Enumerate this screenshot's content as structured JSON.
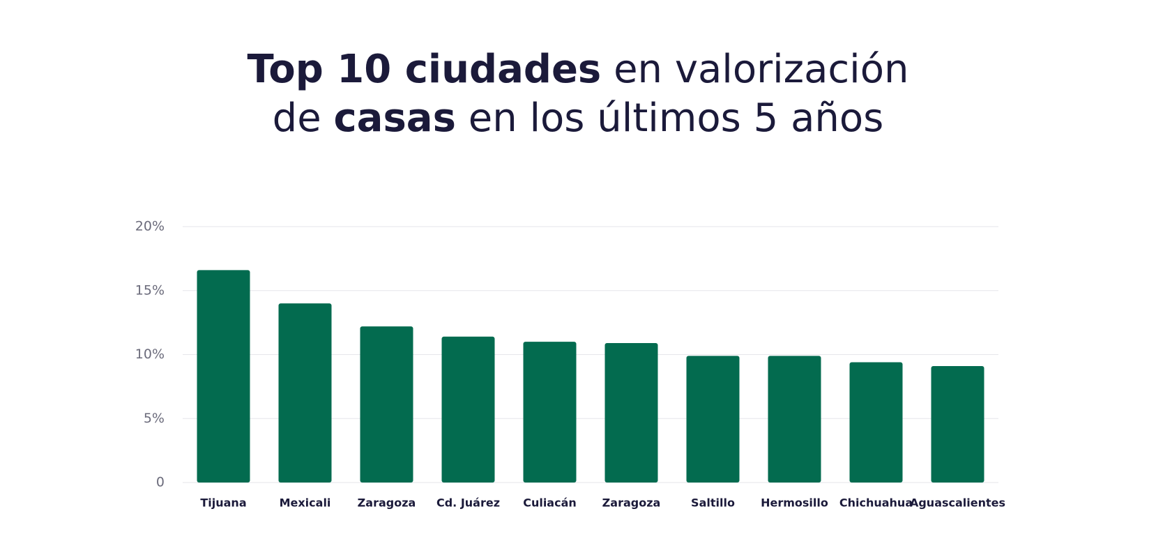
{
  "chart_data": {
    "type": "bar",
    "title": [
      [
        {
          "text": "Top 10 ciudades",
          "bold": true
        },
        {
          "text": "en valorización",
          "bold": false
        }
      ],
      [
        {
          "text": "de",
          "bold": false
        },
        {
          "text": "casas",
          "bold": true
        },
        {
          "text": "en los últimos 5 años",
          "bold": false
        }
      ]
    ],
    "categories": [
      "Tijuana",
      "Mexicali",
      "Zaragoza",
      "Cd. Juárez",
      "Culiacán",
      "Zaragoza",
      "Saltillo",
      "Hermosillo",
      "Chichuahua",
      "Aguascalientes"
    ],
    "values": [
      16.6,
      14.0,
      12.2,
      11.4,
      11.0,
      10.9,
      9.9,
      9.9,
      9.4,
      9.1
    ],
    "color": "#036b4f",
    "ylim": [
      0,
      20
    ],
    "yticks": [
      0,
      {
        "value": 5,
        "label": "5%"
      },
      {
        "value": 10,
        "label": "10%"
      },
      {
        "value": 15,
        "label": "15%"
      },
      {
        "value": 20,
        "label": "20%"
      }
    ],
    "grid": true
  }
}
